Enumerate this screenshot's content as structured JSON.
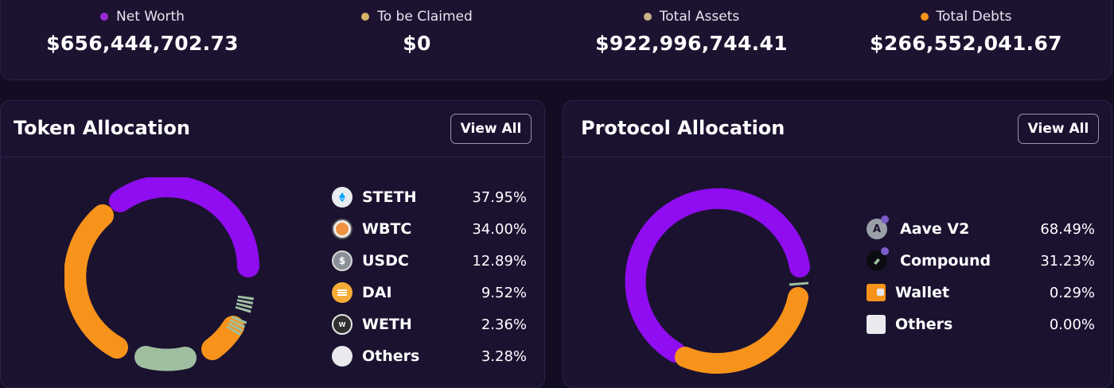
{
  "summary": {
    "net_worth": {
      "label": "Net Worth",
      "value": "$656,444,702.73",
      "color": "#9a2cd8"
    },
    "to_be_claimed": {
      "label": "To be Claimed",
      "value": "$0",
      "color": "#d6b36b"
    },
    "total_assets": {
      "label": "Total Assets",
      "value": "$922,996,744.41",
      "color": "#c7b28a"
    },
    "total_debts": {
      "label": "Total Debts",
      "value": "$266,552,041.67",
      "color": "#f7931a"
    }
  },
  "token_allocation": {
    "title": "Token Allocation",
    "view_all": "View All",
    "items": [
      {
        "name": "STETH",
        "pct": "37.95%",
        "icon": "steth-icon",
        "color": "#ffffff"
      },
      {
        "name": "WBTC",
        "pct": "34.00%",
        "icon": "wbtc-icon",
        "color": "#f09242"
      },
      {
        "name": "USDC",
        "pct": "12.89%",
        "icon": "usdc-icon",
        "color": "#2775ca"
      },
      {
        "name": "DAI",
        "pct": "9.52%",
        "icon": "dai-icon",
        "color": "#f5ac37"
      },
      {
        "name": "WETH",
        "pct": "2.36%",
        "icon": "weth-icon",
        "color": "#303030"
      },
      {
        "name": "Others",
        "pct": "3.28%",
        "icon": "others-icon",
        "color": "#e9e9ee"
      }
    ],
    "segment_colors": {
      "purple": "#8f0df0",
      "orange": "#f7931a",
      "green": "#9fbfa0"
    }
  },
  "protocol_allocation": {
    "title": "Protocol Allocation",
    "view_all": "View All",
    "items": [
      {
        "name": "Aave V2",
        "pct": "68.49%",
        "icon": "aave-icon"
      },
      {
        "name": "Compound",
        "pct": "31.23%",
        "icon": "compound-icon"
      },
      {
        "name": "Wallet",
        "pct": "0.29%",
        "icon": "wallet-icon"
      },
      {
        "name": "Others",
        "pct": "0.00%",
        "icon": "others-icon"
      }
    ]
  }
}
